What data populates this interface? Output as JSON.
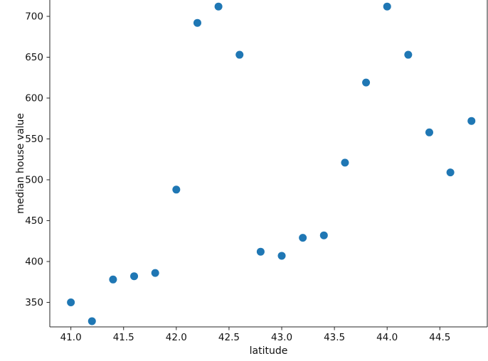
{
  "figure": {
    "background": "#ffffff",
    "text_color": "#111111",
    "spine_color": "#262626"
  },
  "chart_data": {
    "type": "scatter",
    "title": "",
    "xlabel": "latitude",
    "ylabel": "median house value",
    "x": [
      41.0,
      41.2,
      41.4,
      41.6,
      41.8,
      42.0,
      42.2,
      42.4,
      42.6,
      42.8,
      43.0,
      43.2,
      43.4,
      43.6,
      43.8,
      44.0,
      44.2,
      44.4,
      44.6,
      44.8
    ],
    "y": [
      350,
      327,
      378,
      382,
      386,
      488,
      692,
      712,
      653,
      412,
      407,
      429,
      432,
      521,
      619,
      712,
      653,
      558,
      509,
      572
    ],
    "xlim": [
      40.8,
      44.95
    ],
    "ylim": [
      320,
      720
    ],
    "xticks": [
      41.0,
      41.5,
      42.0,
      42.5,
      43.0,
      43.5,
      44.0,
      44.5
    ],
    "yticks": [
      350,
      400,
      450,
      500,
      550,
      600,
      650,
      700
    ],
    "xtick_decimals": 1,
    "marker_color": "#1f77b4",
    "marker_radius": 5.5,
    "grid": false,
    "legend": null
  }
}
